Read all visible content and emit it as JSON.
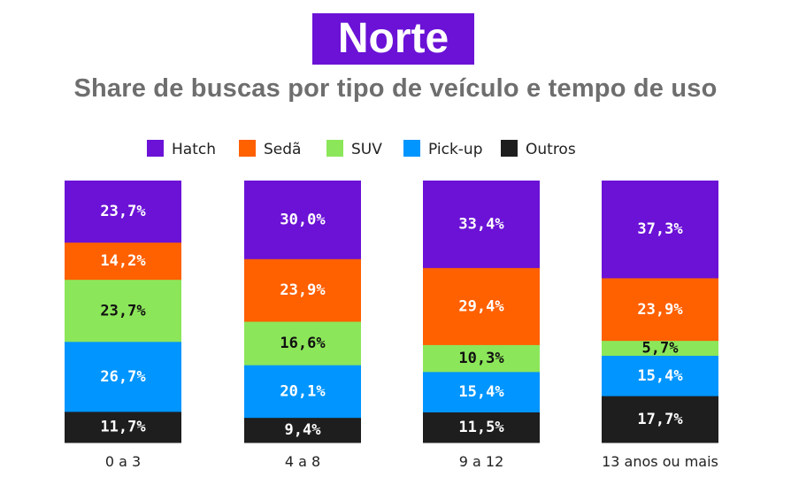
{
  "region_title": "Norte",
  "subtitle": "Share de buscas por tipo de veículo e tempo de uso",
  "chart_data": {
    "type": "bar",
    "stacked": true,
    "categories": [
      "0 a 3",
      "4 a 8",
      "9 a 12",
      "13 anos ou mais"
    ],
    "series": [
      {
        "name": "Hatch",
        "color": "#6b12d6",
        "label_color": "#ffffff",
        "values": [
          23.7,
          30.0,
          33.4,
          37.3
        ]
      },
      {
        "name": "Sedã",
        "color": "#ff6000",
        "label_color": "#ffffff",
        "values": [
          14.2,
          23.9,
          29.4,
          23.9
        ]
      },
      {
        "name": "SUV",
        "color": "#8ce65a",
        "label_color": "#111111",
        "values": [
          23.7,
          16.6,
          10.3,
          5.7
        ]
      },
      {
        "name": "Pick-up",
        "color": "#0095ff",
        "label_color": "#ffffff",
        "values": [
          26.7,
          20.1,
          15.4,
          15.4
        ]
      },
      {
        "name": "Outros",
        "color": "#1e1e1e",
        "label_color": "#ffffff",
        "values": [
          11.7,
          9.4,
          11.5,
          17.7
        ]
      }
    ],
    "labels": [
      [
        "23,7%",
        "30,0%",
        "33,4%",
        "37,3%"
      ],
      [
        "14,2%",
        "23,9%",
        "29,4%",
        "23,9%"
      ],
      [
        "23,7%",
        "16,6%",
        "10,3%",
        "5,7%"
      ],
      [
        "26,7%",
        "20,1%",
        "15,4%",
        "15,4%"
      ],
      [
        "11,7%",
        "9,4%",
        "11,5%",
        "17,7%"
      ]
    ],
    "ylim": [
      0,
      100
    ],
    "legend": "top",
    "grid": false
  }
}
